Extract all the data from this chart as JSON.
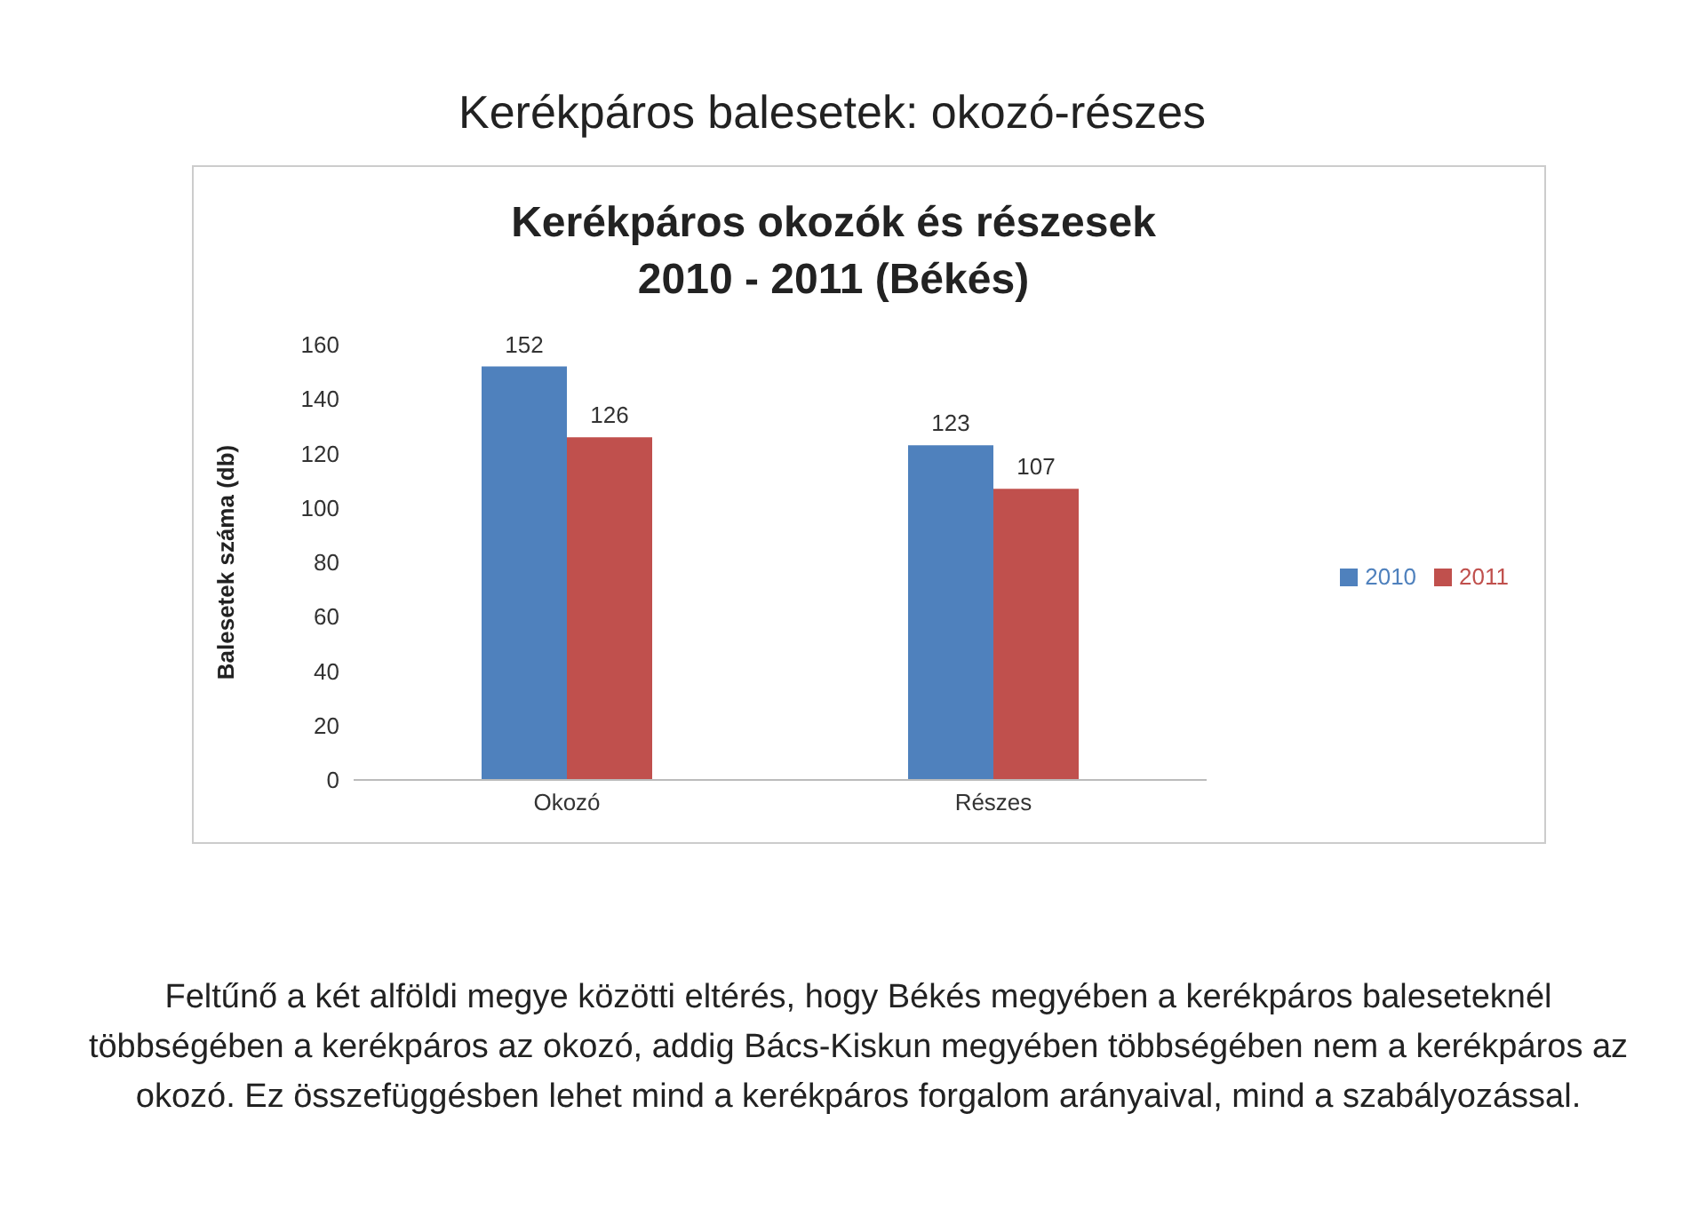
{
  "chart_data": {
    "type": "bar",
    "title": "Kerékpáros okozók és részesek 2010 - 2011 (Békés)",
    "ylabel": "Balesetek száma (db)",
    "categories": [
      "Okozó",
      "Részes"
    ],
    "series": [
      {
        "name": "2010",
        "color": "#4f81bd",
        "values": [
          152,
          123
        ]
      },
      {
        "name": "2011",
        "color": "#c0504d",
        "values": [
          126,
          107
        ]
      }
    ],
    "ylim": [
      0,
      160
    ],
    "yticks": [
      0,
      20,
      40,
      60,
      80,
      100,
      120,
      140,
      160
    ],
    "grid": false,
    "legend": "right",
    "data_labels": true,
    "annotations": [
      "Kerékpáros balesetek: okozó-részes",
      "Feltűnő a két alföldi megye közötti eltérés, hogy Békés megyében a kerékpáros baleseteknél többségében a kerékpáros az okozó, addig Bács-Kiskun megyében többségében nem a kerékpáros az okozó. Ez összefüggésben lehet mind a kerékpáros forgalom arányaival, mind a szabályozással."
    ]
  }
}
